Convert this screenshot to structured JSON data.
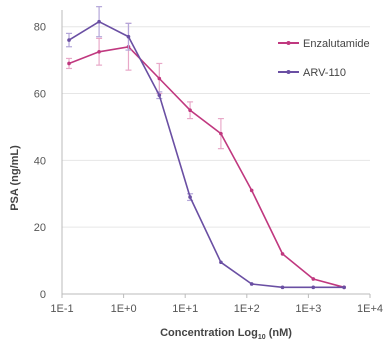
{
  "chart_data": {
    "type": "line",
    "title": "",
    "xlabel": {
      "main": "Concentration Log",
      "sub": "10",
      "unit": " (nM)"
    },
    "ylabel": "PSA (ng/mL)",
    "x_scale": "log10",
    "xlim": [
      0.1,
      10000
    ],
    "ylim": [
      0,
      85
    ],
    "x_ticks": [
      0.1,
      1,
      10,
      100,
      1000,
      10000
    ],
    "x_tick_labels": [
      "1E-1",
      "1E+0",
      "1E+1",
      "1E+2",
      "1E+3",
      "1E+4"
    ],
    "y_ticks": [
      0,
      20,
      40,
      60,
      80
    ],
    "y_tick_labels": [
      "0",
      "20",
      "40",
      "60",
      "80"
    ],
    "grid": "horizontal",
    "legend_position": "top-right",
    "series": [
      {
        "name": "Enzalutamide",
        "color": "#c0387f",
        "error_color": "#e8a8c8",
        "x": [
          0.13,
          0.4,
          1.2,
          3.8,
          12,
          38,
          120,
          380,
          1200,
          3800
        ],
        "y": [
          69,
          72.5,
          74,
          64.5,
          55,
          48,
          31,
          12,
          4.5,
          2
        ],
        "err": [
          1.5,
          4,
          7,
          4.5,
          2.5,
          4.5,
          0,
          0,
          0,
          0
        ]
      },
      {
        "name": "ARV-110",
        "color": "#6a4fa3",
        "error_color": "#b3a6d9",
        "x": [
          0.13,
          0.4,
          1.2,
          3.8,
          12,
          38,
          120,
          380,
          1200,
          3800
        ],
        "y": [
          76,
          81.5,
          77,
          59.5,
          29,
          9.5,
          3,
          2,
          2,
          2
        ],
        "err": [
          2,
          4.5,
          4,
          1,
          1,
          0,
          0,
          0,
          0,
          0
        ]
      }
    ]
  }
}
